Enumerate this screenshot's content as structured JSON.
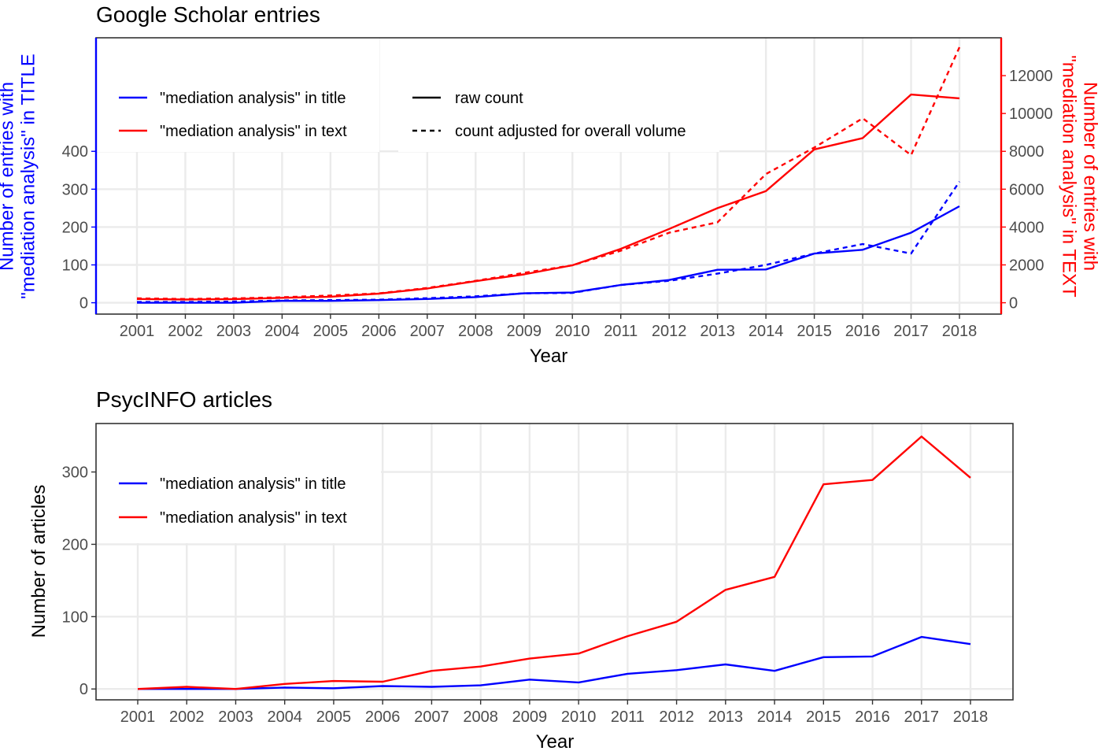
{
  "chart_data": [
    {
      "type": "line",
      "title": "Google Scholar entries",
      "xlabel": "Year",
      "ylabel": "Number of entries with\n\"mediation analysis\" in TITLE",
      "ylabel_right": "Number of entries with\n\"mediation analysis\" in TEXT",
      "x": [
        "2001",
        "2002",
        "2003",
        "2004",
        "2005",
        "2006",
        "2007",
        "2008",
        "2009",
        "2010",
        "2011",
        "2012",
        "2013",
        "2014",
        "2015",
        "2016",
        "2017",
        "2018"
      ],
      "ylim": [
        -30,
        700
      ],
      "y_ticks": [
        0,
        100,
        200,
        300,
        400
      ],
      "y2lim": [
        -600,
        14000
      ],
      "y2_ticks": [
        0,
        2000,
        4000,
        6000,
        8000,
        10000,
        12000
      ],
      "axis_colors": {
        "left": "#0000ff",
        "right": "#ff0000"
      },
      "grid": true,
      "legend_position": "top-left",
      "legend_color_entries": [
        {
          "label": "\"mediation analysis\" in title",
          "color": "#0000ff"
        },
        {
          "label": "\"mediation analysis\" in text",
          "color": "#ff0000"
        }
      ],
      "legend_style_entries": [
        {
          "label": "raw count",
          "dash": "solid"
        },
        {
          "label": "count adjusted for overall volume",
          "dash": "dashed"
        }
      ],
      "series": [
        {
          "color": "#0000ff",
          "axis": "left",
          "dash": "solid",
          "values": [
            0,
            0,
            0,
            5,
            5,
            7,
            10,
            15,
            25,
            27,
            47,
            60,
            87,
            88,
            130,
            140,
            185,
            255
          ]
        },
        {
          "color": "#0000ff",
          "axis": "left",
          "dash": "dashed",
          "values": [
            2,
            2,
            3,
            6,
            7,
            8,
            12,
            17,
            25,
            26,
            47,
            58,
            77,
            100,
            130,
            155,
            130,
            320
          ]
        },
        {
          "color": "#ff0000",
          "axis": "right",
          "dash": "solid",
          "values": [
            200,
            170,
            190,
            260,
            320,
            480,
            750,
            1140,
            1500,
            1980,
            2850,
            3900,
            5000,
            5900,
            8100,
            8700,
            11000,
            10800
          ]
        },
        {
          "color": "#ff0000",
          "axis": "right",
          "dash": "dashed",
          "values": [
            230,
            200,
            230,
            290,
            380,
            500,
            780,
            1160,
            1580,
            1980,
            2750,
            3700,
            4250,
            6800,
            8200,
            9750,
            7800,
            13500
          ]
        }
      ]
    },
    {
      "type": "line",
      "title": "PsycINFO articles",
      "xlabel": "Year",
      "ylabel": "Number of articles",
      "x": [
        "2001",
        "2002",
        "2003",
        "2004",
        "2005",
        "2006",
        "2007",
        "2008",
        "2009",
        "2010",
        "2011",
        "2012",
        "2013",
        "2014",
        "2015",
        "2016",
        "2017",
        "2018"
      ],
      "ylim": [
        -15,
        367
      ],
      "y_ticks": [
        0,
        100,
        200,
        300
      ],
      "grid": true,
      "legend_position": "top-left",
      "legend_color_entries": [
        {
          "label": "\"mediation analysis\" in title",
          "color": "#0000ff"
        },
        {
          "label": "\"mediation analysis\" in text",
          "color": "#ff0000"
        }
      ],
      "series": [
        {
          "color": "#0000ff",
          "dash": "solid",
          "values": [
            0,
            0,
            0,
            2,
            1,
            4,
            3,
            5,
            13,
            9,
            21,
            26,
            34,
            25,
            44,
            45,
            72,
            62
          ]
        },
        {
          "color": "#ff0000",
          "dash": "solid",
          "values": [
            0,
            3,
            0,
            7,
            11,
            10,
            25,
            31,
            42,
            49,
            73,
            93,
            137,
            155,
            283,
            289,
            349,
            292
          ]
        }
      ]
    }
  ]
}
